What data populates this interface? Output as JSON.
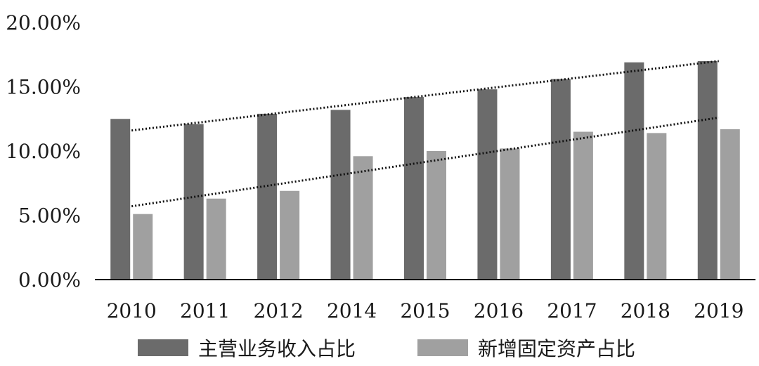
{
  "chart_data": {
    "type": "bar",
    "categories": [
      "2010",
      "2011",
      "2012",
      "2014",
      "2015",
      "2016",
      "2017",
      "2018",
      "2019"
    ],
    "series": [
      {
        "name": "主营业务收入占比",
        "color": "#6b6b6b",
        "values": [
          12.5,
          12.1,
          12.9,
          13.2,
          14.2,
          14.8,
          15.6,
          16.9,
          17.0
        ]
      },
      {
        "name": "新增固定资产占比",
        "color": "#a0a0a0",
        "values": [
          5.1,
          6.3,
          6.9,
          9.6,
          10.0,
          10.2,
          11.5,
          11.4,
          11.7
        ]
      }
    ],
    "trendlines": [
      {
        "series": "主营业务收入占比",
        "style": "dotted",
        "start": 11.6,
        "end": 17.0
      },
      {
        "series": "新增固定资产占比",
        "style": "dotted",
        "start": 5.7,
        "end": 12.6
      }
    ],
    "y_ticks": [
      "0.00%",
      "5.00%",
      "10.00%",
      "15.00%",
      "20.00%"
    ],
    "ylim": [
      0,
      20
    ],
    "legend_position": "bottom",
    "grid": false
  }
}
